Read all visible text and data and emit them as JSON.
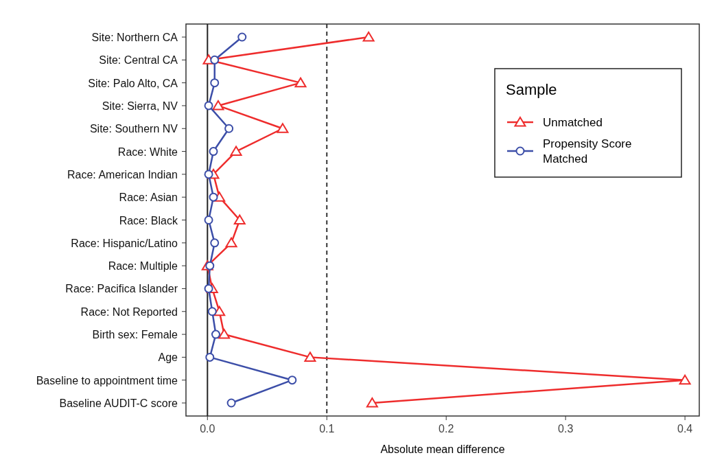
{
  "chart_data": {
    "type": "line",
    "orientation": "horizontal",
    "xlabel": "Absolute mean difference",
    "legend_title": "Sample",
    "legend": "top right",
    "grid": false,
    "categories": [
      "Site: Northern CA",
      "Site: Central CA",
      "Site: Palo Alto, CA",
      "Site: Sierra, NV",
      "Site: Southern NV",
      "Race: White",
      "Race: American Indian",
      "Race: Asian",
      "Race: Black",
      "Race: Hispanic/Latino",
      "Race: Multiple",
      "Race: Pacifica Islander",
      "Race: Not Reported",
      "Birth sex: Female",
      "Age",
      "Baseline to appointment time",
      "Baseline AUDIT-C score"
    ],
    "series": [
      {
        "name": "Unmatched",
        "color": "#ee2c2c",
        "marker": "triangle",
        "values": [
          0.135,
          0.001,
          0.078,
          0.009,
          0.063,
          0.024,
          0.005,
          0.01,
          0.027,
          0.02,
          0.0,
          0.004,
          0.01,
          0.014,
          0.086,
          0.4,
          0.138
        ]
      },
      {
        "name": "Propensity Score Matched",
        "color": "#3c4ea8",
        "marker": "circle",
        "values": [
          0.029,
          0.006,
          0.006,
          0.001,
          0.018,
          0.005,
          0.001,
          0.005,
          0.001,
          0.006,
          0.002,
          0.001,
          0.004,
          0.007,
          0.002,
          0.071,
          0.02
        ]
      }
    ],
    "xlim": [
      -0.018,
      0.412
    ],
    "xticks": [
      {
        "value": 0,
        "label": "0.0"
      },
      0.1,
      0.2,
      0.3,
      0.4
    ],
    "ref_lines": [
      {
        "axis": "x",
        "value": 0,
        "color": "#222222",
        "line_style": "solid"
      },
      {
        "axis": "x",
        "value": 0.1,
        "color": "#333333",
        "line_style": "dashed"
      }
    ]
  }
}
